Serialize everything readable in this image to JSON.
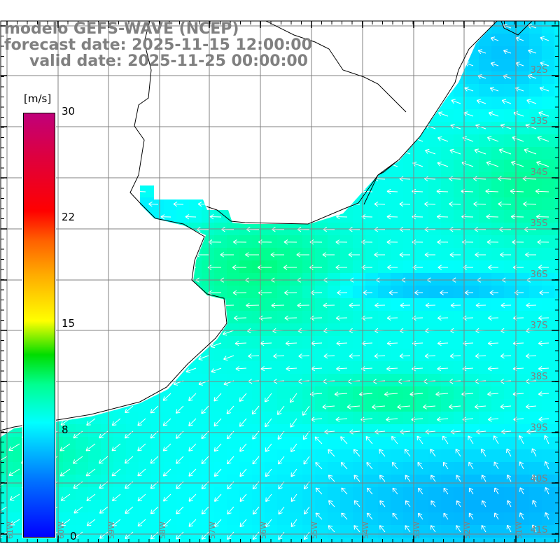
{
  "title": {
    "line1": "modelo GEFS-WAVE (NCEP)",
    "line2": "forecast date: 2025-11-15 12:00:00",
    "line3": "valid date: 2025-11-25 00:00:00"
  },
  "colorbar": {
    "unit": "[m/s]",
    "labels": [
      "30",
      "22",
      "15",
      "8",
      "0"
    ],
    "min": 0,
    "max": 30
  },
  "lat_labels": [
    "32S",
    "33S",
    "34S",
    "35S",
    "36S",
    "37S",
    "38S",
    "39S",
    "40S",
    "41S"
  ],
  "lon_labels": [
    "61W",
    "60W",
    "59W",
    "58W",
    "57W",
    "56W",
    "55W",
    "54W",
    "53W",
    "52W",
    "51W"
  ],
  "colors": {
    "grid": "#808080",
    "coast": "#000000",
    "arrow": "#ffffff",
    "title": "#808080"
  }
}
